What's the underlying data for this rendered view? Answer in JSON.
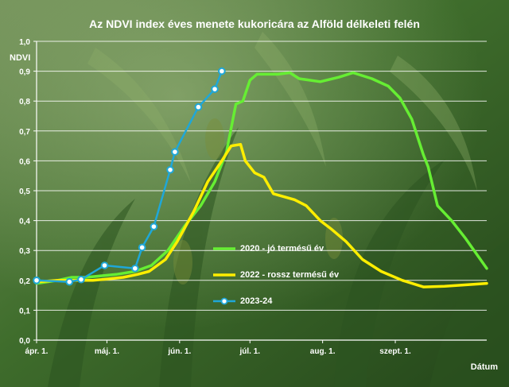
{
  "chart_data": {
    "type": "line",
    "title": "Az NDVI index éves menete kukoricára az Alföld délkeleti felén",
    "ylabel": "NDVI",
    "xlabel": "Dátum",
    "ylim": [
      0,
      1.0
    ],
    "yticks": [
      "0,0",
      "0,1",
      "0,2",
      "0,3",
      "0,4",
      "0,5",
      "0,6",
      "0,7",
      "0,8",
      "0,9",
      "1,0"
    ],
    "xlim": [
      "2000-04-01",
      "2000-10-10"
    ],
    "xticks": [
      {
        "date": "2000-04-01",
        "label": "ápr. 1."
      },
      {
        "date": "2000-05-01",
        "label": "máj. 1."
      },
      {
        "date": "2000-06-01",
        "label": "jún. 1."
      },
      {
        "date": "2000-07-01",
        "label": "júl. 1."
      },
      {
        "date": "2000-08-01",
        "label": "aug. 1."
      },
      {
        "date": "2000-09-01",
        "label": "szept. 1."
      }
    ],
    "grid": true,
    "legend_position": "lower-center",
    "series": [
      {
        "name": "2020 - jó termésű év",
        "color": "#66ee33",
        "marker": "none",
        "points": [
          [
            "2000-04-01",
            0.19
          ],
          [
            "2000-04-10",
            0.2
          ],
          [
            "2000-04-16",
            0.21
          ],
          [
            "2000-04-22",
            0.21
          ],
          [
            "2000-05-05",
            0.22
          ],
          [
            "2000-05-13",
            0.23
          ],
          [
            "2000-05-20",
            0.25
          ],
          [
            "2000-05-27",
            0.3
          ],
          [
            "2000-06-03",
            0.38
          ],
          [
            "2000-06-10",
            0.45
          ],
          [
            "2000-06-16",
            0.53
          ],
          [
            "2000-06-21",
            0.63
          ],
          [
            "2000-06-25",
            0.79
          ],
          [
            "2000-06-28",
            0.8
          ],
          [
            "2000-07-01",
            0.87
          ],
          [
            "2000-07-04",
            0.89
          ],
          [
            "2000-07-13",
            0.89
          ],
          [
            "2000-07-18",
            0.895
          ],
          [
            "2000-07-22",
            0.875
          ],
          [
            "2000-07-31",
            0.865
          ],
          [
            "2000-08-08",
            0.88
          ],
          [
            "2000-08-14",
            0.895
          ],
          [
            "2000-08-22",
            0.875
          ],
          [
            "2000-08-29",
            0.85
          ],
          [
            "2000-09-03",
            0.81
          ],
          [
            "2000-09-08",
            0.74
          ],
          [
            "2000-09-13",
            0.62
          ],
          [
            "2000-09-15",
            0.58
          ],
          [
            "2000-09-19",
            0.45
          ],
          [
            "2000-09-25",
            0.4
          ],
          [
            "2000-10-01",
            0.34
          ],
          [
            "2000-10-10",
            0.24
          ]
        ]
      },
      {
        "name": "2022 - rossz termésű év",
        "color": "#ffee00",
        "marker": "none",
        "points": [
          [
            "2000-04-01",
            0.195
          ],
          [
            "2000-04-10",
            0.2
          ],
          [
            "2000-04-18",
            0.2
          ],
          [
            "2000-04-25",
            0.2
          ],
          [
            "2000-05-02",
            0.205
          ],
          [
            "2000-05-08",
            0.21
          ],
          [
            "2000-05-14",
            0.22
          ],
          [
            "2000-05-19",
            0.23
          ],
          [
            "2000-05-26",
            0.27
          ],
          [
            "2000-05-31",
            0.33
          ],
          [
            "2000-06-07",
            0.43
          ],
          [
            "2000-06-13",
            0.53
          ],
          [
            "2000-06-19",
            0.6
          ],
          [
            "2000-06-23",
            0.65
          ],
          [
            "2000-06-27",
            0.655
          ],
          [
            "2000-06-29",
            0.6
          ],
          [
            "2000-07-03",
            0.56
          ],
          [
            "2000-07-07",
            0.545
          ],
          [
            "2000-07-11",
            0.49
          ],
          [
            "2000-07-20",
            0.47
          ],
          [
            "2000-07-25",
            0.45
          ],
          [
            "2000-07-31",
            0.4
          ],
          [
            "2000-08-05",
            0.37
          ],
          [
            "2000-08-11",
            0.33
          ],
          [
            "2000-08-18",
            0.27
          ],
          [
            "2000-08-26",
            0.23
          ],
          [
            "2000-09-04",
            0.2
          ],
          [
            "2000-09-13",
            0.178
          ],
          [
            "2000-09-22",
            0.18
          ],
          [
            "2000-10-10",
            0.19
          ]
        ]
      },
      {
        "name": "2023-24",
        "color": "#1fa7d8",
        "marker": "circle",
        "points": [
          [
            "2000-04-01",
            0.2
          ],
          [
            "2000-04-15",
            0.195
          ],
          [
            "2000-04-20",
            0.203
          ],
          [
            "2000-04-30",
            0.25
          ],
          [
            "2000-05-13",
            0.24
          ],
          [
            "2000-05-16",
            0.31
          ],
          [
            "2000-05-21",
            0.38
          ],
          [
            "2000-05-28",
            0.57
          ],
          [
            "2000-05-30",
            0.63
          ],
          [
            "2000-06-09",
            0.78
          ],
          [
            "2000-06-16",
            0.84
          ],
          [
            "2000-06-19",
            0.9
          ]
        ]
      }
    ]
  }
}
